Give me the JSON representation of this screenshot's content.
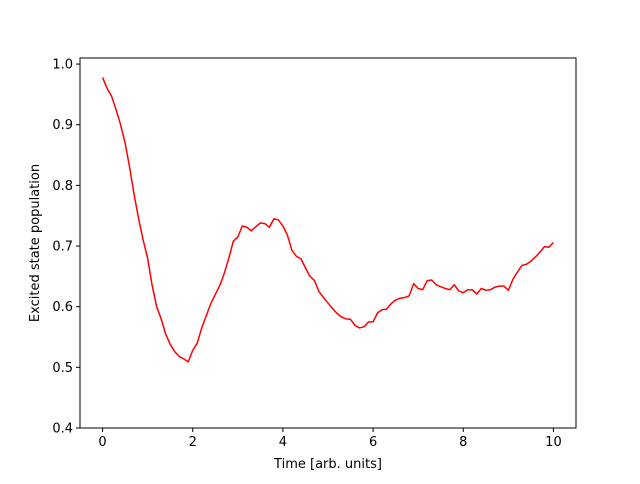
{
  "chart_data": {
    "type": "line",
    "xlabel": "Time [arb. units]",
    "ylabel": "Excited state population",
    "x": [
      0,
      0.1,
      0.2,
      0.3,
      0.4,
      0.5,
      0.6,
      0.7,
      0.8,
      0.9,
      1.0,
      1.1,
      1.2,
      1.3,
      1.4,
      1.5,
      1.6,
      1.7,
      1.8,
      1.9,
      2.0,
      2.1,
      2.2,
      2.3,
      2.4,
      2.5,
      2.6,
      2.7,
      2.8,
      2.9,
      3.0,
      3.1,
      3.2,
      3.3,
      3.4,
      3.5,
      3.6,
      3.7,
      3.8,
      3.9,
      4.0,
      4.1,
      4.2,
      4.3,
      4.4,
      4.5,
      4.6,
      4.7,
      4.8,
      4.9,
      5.0,
      5.1,
      5.2,
      5.3,
      5.4,
      5.5,
      5.6,
      5.7,
      5.8,
      5.9,
      6.0,
      6.1,
      6.2,
      6.3,
      6.4,
      6.5,
      6.6,
      6.7,
      6.8,
      6.9,
      7.0,
      7.1,
      7.2,
      7.3,
      7.4,
      7.5,
      7.6,
      7.7,
      7.8,
      7.9,
      8.0,
      8.1,
      8.2,
      8.3,
      8.4,
      8.5,
      8.6,
      8.7,
      8.8,
      8.9,
      9.0,
      9.1,
      9.2,
      9.3,
      9.4,
      9.5,
      9.6,
      9.7,
      9.8,
      9.9,
      10.0
    ],
    "series": [
      {
        "color": "#ff0000",
        "values": [
          0.978,
          0.96,
          0.947,
          0.925,
          0.9,
          0.87,
          0.83,
          0.785,
          0.745,
          0.71,
          0.68,
          0.635,
          0.6,
          0.58,
          0.555,
          0.538,
          0.526,
          0.518,
          0.514,
          0.509,
          0.528,
          0.54,
          0.565,
          0.585,
          0.605,
          0.62,
          0.635,
          0.655,
          0.68,
          0.708,
          0.715,
          0.733,
          0.731,
          0.725,
          0.732,
          0.738,
          0.737,
          0.731,
          0.745,
          0.743,
          0.733,
          0.718,
          0.693,
          0.683,
          0.679,
          0.664,
          0.65,
          0.643,
          0.625,
          0.615,
          0.606,
          0.597,
          0.589,
          0.583,
          0.58,
          0.579,
          0.569,
          0.565,
          0.567,
          0.575,
          0.575,
          0.59,
          0.595,
          0.596,
          0.605,
          0.611,
          0.614,
          0.615,
          0.618,
          0.638,
          0.63,
          0.628,
          0.643,
          0.644,
          0.636,
          0.633,
          0.63,
          0.628,
          0.636,
          0.626,
          0.623,
          0.628,
          0.628,
          0.621,
          0.63,
          0.627,
          0.628,
          0.632,
          0.634,
          0.634,
          0.627,
          0.645,
          0.657,
          0.668,
          0.67,
          0.675,
          0.682,
          0.69,
          0.699,
          0.698,
          0.706
        ]
      }
    ],
    "xlim": [
      -0.5,
      10.5
    ],
    "xticks": [
      0,
      2,
      4,
      6,
      8,
      10
    ],
    "ylim": [
      0.4,
      1.01
    ],
    "yticks": [
      0.4,
      0.5,
      0.6,
      0.7,
      0.8,
      0.9,
      {
        "value": 1,
        "label": "1.0"
      }
    ],
    "grid": false
  }
}
